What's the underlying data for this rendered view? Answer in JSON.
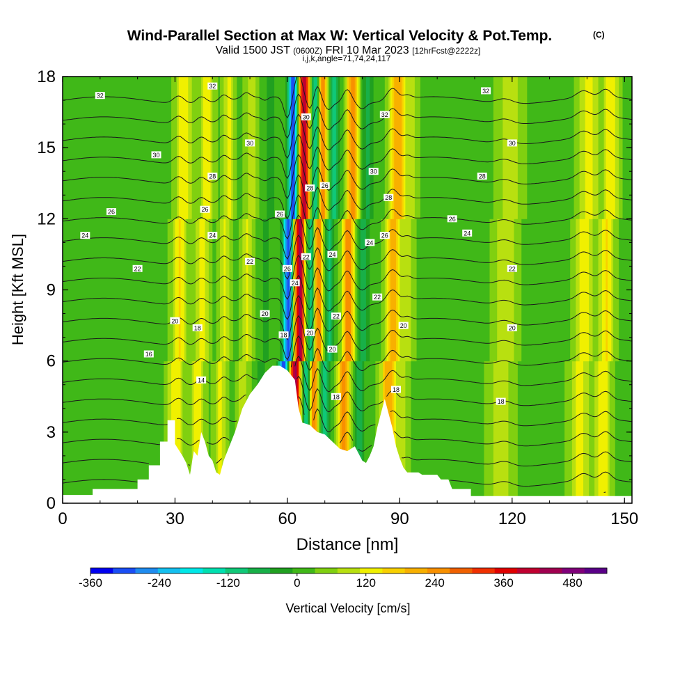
{
  "chart_data": {
    "type": "heatmap",
    "title": "Wind-Parallel Section at Max W: Vertical Velocity & Pot.Temp.",
    "title_mark": "(C)",
    "subtitle_main": "Valid 1500 JST",
    "subtitle_utc": "(0600Z)",
    "subtitle_date": "FRI 10 Mar 2023",
    "subtitle_fcst": "[12hrFcst@2222z]",
    "subtitle_indices": "i,j,k,angle=71,74,24,117",
    "xlabel": "Distance [nm]",
    "ylabel": "Height [Kft MSL]",
    "xlim": [
      0,
      152
    ],
    "ylim": [
      0,
      18
    ],
    "x_ticks": [
      "0",
      "30",
      "60",
      "90",
      "120",
      "150"
    ],
    "y_ticks": [
      "0",
      "3",
      "6",
      "9",
      "12",
      "15",
      "18"
    ],
    "colorbar": {
      "label": "Vertical Velocity [cm/s]",
      "range": [
        -360,
        540
      ],
      "step": 40,
      "tick_labels": [
        "-360",
        "-240",
        "-120",
        "0",
        "120",
        "240",
        "360",
        "480"
      ],
      "colors": [
        "#0000f0",
        "#1a4ef5",
        "#1f8cf0",
        "#14c0f0",
        "#00e8e8",
        "#00e0b0",
        "#10c878",
        "#18b048",
        "#20a020",
        "#40b818",
        "#80d010",
        "#b8e010",
        "#f0f000",
        "#f8d000",
        "#f8b000",
        "#f89000",
        "#f06000",
        "#f03000",
        "#e00000",
        "#c00030",
        "#a00050",
        "#80007a",
        "#5a0088"
      ]
    },
    "background_velocity": 30,
    "terrain": [
      [
        0,
        0.35
      ],
      [
        8,
        0.35
      ],
      [
        8,
        0.6
      ],
      [
        20,
        0.6
      ],
      [
        20,
        1.0
      ],
      [
        23,
        1.0
      ],
      [
        23,
        1.6
      ],
      [
        26,
        1.6
      ],
      [
        26,
        2.6
      ],
      [
        28,
        2.6
      ],
      [
        28,
        3.5
      ],
      [
        30,
        3.5
      ],
      [
        30,
        2.5
      ],
      [
        32,
        2.0
      ],
      [
        33,
        1.7
      ],
      [
        34,
        1.2
      ],
      [
        35,
        2.2
      ],
      [
        36,
        2.0
      ],
      [
        37,
        3.0
      ],
      [
        38,
        2.6
      ],
      [
        39,
        2.0
      ],
      [
        40,
        1.8
      ],
      [
        41,
        1.3
      ],
      [
        42,
        1.2
      ],
      [
        43,
        1.8
      ],
      [
        44,
        2.2
      ],
      [
        46,
        3.0
      ],
      [
        48,
        4.0
      ],
      [
        50,
        4.6
      ],
      [
        52,
        5.0
      ],
      [
        54,
        5.5
      ],
      [
        56,
        5.8
      ],
      [
        58,
        5.8
      ],
      [
        60,
        5.6
      ],
      [
        62,
        5.2
      ],
      [
        63,
        4.0
      ],
      [
        64,
        3.4
      ],
      [
        66,
        3.3
      ],
      [
        68,
        3.0
      ],
      [
        70,
        2.9
      ],
      [
        72,
        2.6
      ],
      [
        74,
        2.3
      ],
      [
        76,
        2.2
      ],
      [
        78,
        2.4
      ],
      [
        80,
        1.8
      ],
      [
        81,
        1.7
      ],
      [
        82,
        2.0
      ],
      [
        83,
        2.4
      ],
      [
        84,
        3.2
      ],
      [
        85,
        3.8
      ],
      [
        86,
        4.4
      ],
      [
        87,
        3.8
      ],
      [
        88,
        3.2
      ],
      [
        89,
        2.4
      ],
      [
        90,
        1.9
      ],
      [
        91,
        1.5
      ],
      [
        92,
        1.3
      ],
      [
        95,
        1.3
      ],
      [
        96,
        1.2
      ],
      [
        100,
        1.2
      ],
      [
        101,
        1.0
      ],
      [
        103,
        1.0
      ],
      [
        104,
        0.6
      ],
      [
        109,
        0.6
      ],
      [
        109,
        0.3
      ],
      [
        152,
        0.3
      ]
    ],
    "velocity_bands": [
      {
        "center": 31,
        "width": 2.0,
        "value": 130
      },
      {
        "center": 37,
        "width": 1.8,
        "value": 110
      },
      {
        "center": 43,
        "width": 1.5,
        "value": 100
      },
      {
        "center": 49,
        "width": 1.5,
        "value": 90
      },
      {
        "center": 54,
        "width": 1.2,
        "value": -60
      },
      {
        "center": 60,
        "width": 1.3,
        "value": -350
      },
      {
        "center": 63,
        "width": 1.5,
        "value": 420
      },
      {
        "center": 66,
        "width": 1.2,
        "value": -160
      },
      {
        "center": 68,
        "width": 1.2,
        "value": 260
      },
      {
        "center": 71,
        "width": 1.3,
        "value": -120
      },
      {
        "center": 76,
        "width": 1.6,
        "value": 240
      },
      {
        "center": 80,
        "width": 1.5,
        "value": -90
      },
      {
        "center": 88,
        "width": 2.0,
        "value": 200
      },
      {
        "center": 92,
        "width": 1.5,
        "value": 60
      },
      {
        "center": 118,
        "width": 3.0,
        "value": 80
      },
      {
        "center": 139,
        "width": 2.5,
        "value": 110
      },
      {
        "center": 145,
        "width": 2.0,
        "value": 130
      }
    ],
    "theta_levels": [
      12,
      13,
      14,
      15,
      16,
      17,
      18,
      19,
      20,
      21,
      22,
      23,
      24,
      25,
      26,
      27,
      28,
      29,
      30,
      31,
      32
    ],
    "theta_labels": [
      {
        "x": 10,
        "y": 17.2,
        "text": "32"
      },
      {
        "x": 40,
        "y": 17.6,
        "text": "32"
      },
      {
        "x": 86,
        "y": 16.4,
        "text": "32"
      },
      {
        "x": 113,
        "y": 17.4,
        "text": "32"
      },
      {
        "x": 25,
        "y": 14.7,
        "text": "30"
      },
      {
        "x": 50,
        "y": 15.2,
        "text": "30"
      },
      {
        "x": 65,
        "y": 16.3,
        "text": "30"
      },
      {
        "x": 83,
        "y": 14.0,
        "text": "30"
      },
      {
        "x": 120,
        "y": 15.2,
        "text": "30"
      },
      {
        "x": 40,
        "y": 13.8,
        "text": "28"
      },
      {
        "x": 66,
        "y": 13.3,
        "text": "28"
      },
      {
        "x": 87,
        "y": 12.9,
        "text": "28"
      },
      {
        "x": 112,
        "y": 13.8,
        "text": "28"
      },
      {
        "x": 13,
        "y": 12.3,
        "text": "26"
      },
      {
        "x": 38,
        "y": 12.4,
        "text": "26"
      },
      {
        "x": 58,
        "y": 12.2,
        "text": "26"
      },
      {
        "x": 70,
        "y": 13.4,
        "text": "26"
      },
      {
        "x": 104,
        "y": 12.0,
        "text": "26"
      },
      {
        "x": 86,
        "y": 11.3,
        "text": "26"
      },
      {
        "x": 6,
        "y": 11.3,
        "text": "24"
      },
      {
        "x": 40,
        "y": 11.3,
        "text": "24"
      },
      {
        "x": 82,
        "y": 11.0,
        "text": "24"
      },
      {
        "x": 108,
        "y": 11.4,
        "text": "24"
      },
      {
        "x": 72,
        "y": 10.5,
        "text": "24"
      },
      {
        "x": 20,
        "y": 9.9,
        "text": "22"
      },
      {
        "x": 50,
        "y": 10.2,
        "text": "22"
      },
      {
        "x": 65,
        "y": 10.4,
        "text": "22"
      },
      {
        "x": 84,
        "y": 8.7,
        "text": "22"
      },
      {
        "x": 120,
        "y": 9.9,
        "text": "22"
      },
      {
        "x": 73,
        "y": 7.9,
        "text": "22"
      },
      {
        "x": 60,
        "y": 9.9,
        "text": "26"
      },
      {
        "x": 62,
        "y": 9.3,
        "text": "24"
      },
      {
        "x": 30,
        "y": 7.7,
        "text": "20"
      },
      {
        "x": 54,
        "y": 8.0,
        "text": "20"
      },
      {
        "x": 66,
        "y": 7.2,
        "text": "20"
      },
      {
        "x": 72,
        "y": 6.5,
        "text": "20"
      },
      {
        "x": 91,
        "y": 7.5,
        "text": "20"
      },
      {
        "x": 120,
        "y": 7.4,
        "text": "20"
      },
      {
        "x": 36,
        "y": 7.4,
        "text": "18"
      },
      {
        "x": 59,
        "y": 7.1,
        "text": "18"
      },
      {
        "x": 73,
        "y": 4.5,
        "text": "18"
      },
      {
        "x": 89,
        "y": 4.8,
        "text": "18"
      },
      {
        "x": 117,
        "y": 4.3,
        "text": "18"
      },
      {
        "x": 23,
        "y": 6.3,
        "text": "16"
      },
      {
        "x": 37,
        "y": 5.2,
        "text": "14"
      }
    ]
  }
}
